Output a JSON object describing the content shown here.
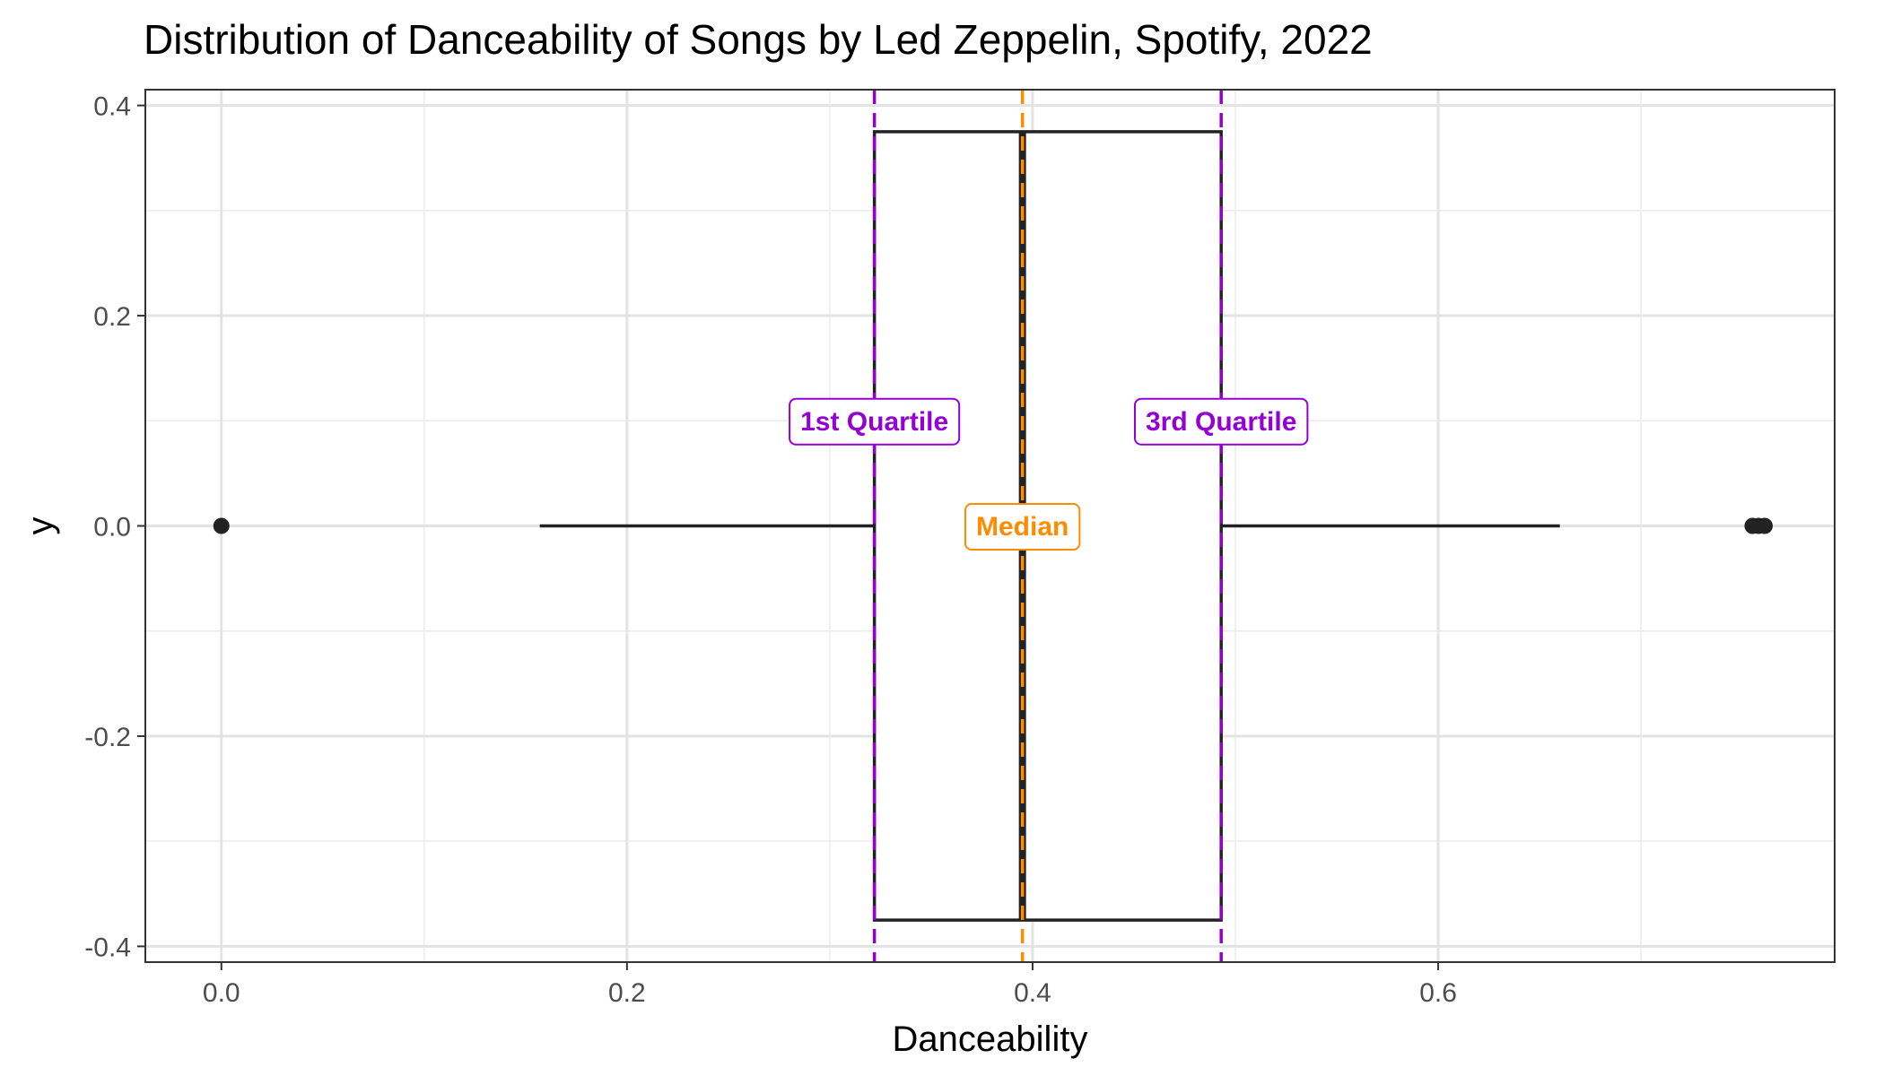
{
  "chart_data": {
    "type": "boxplot",
    "title": "Distribution of Danceability of Songs by Led Zeppelin, Spotify, 2022",
    "xlabel": "Danceability",
    "ylabel": "y",
    "xlim": [
      -0.0375,
      0.7955
    ],
    "ylim": [
      -0.415,
      0.415
    ],
    "x_ticks": [
      0.0,
      0.2,
      0.4,
      0.6
    ],
    "x_tick_labels": [
      "0.0",
      "0.2",
      "0.4",
      "0.6"
    ],
    "y_ticks": [
      0.4,
      0.2,
      0.0,
      -0.2,
      -0.4
    ],
    "y_tick_labels": [
      "0.4",
      "0.2",
      "0.0",
      "-0.2",
      "-0.4"
    ],
    "grid": true,
    "box": {
      "lower_whisker": 0.157,
      "q1": 0.322,
      "median": 0.395,
      "q3": 0.493,
      "upper_whisker": 0.66,
      "ymin": -0.375,
      "ymax": 0.375
    },
    "outliers": [
      0.0,
      0.755,
      0.758,
      0.761
    ],
    "reference_lines": [
      {
        "name": "1st Quartile",
        "x": 0.322,
        "color": "#9400D3",
        "dashed": true,
        "label_y": 0.1
      },
      {
        "name": "Median",
        "x": 0.395,
        "color": "#FF8C00",
        "dashed": true,
        "label_y": 0.0
      },
      {
        "name": "3rd Quartile",
        "x": 0.493,
        "color": "#9400D3",
        "dashed": true,
        "label_y": 0.1
      }
    ]
  }
}
